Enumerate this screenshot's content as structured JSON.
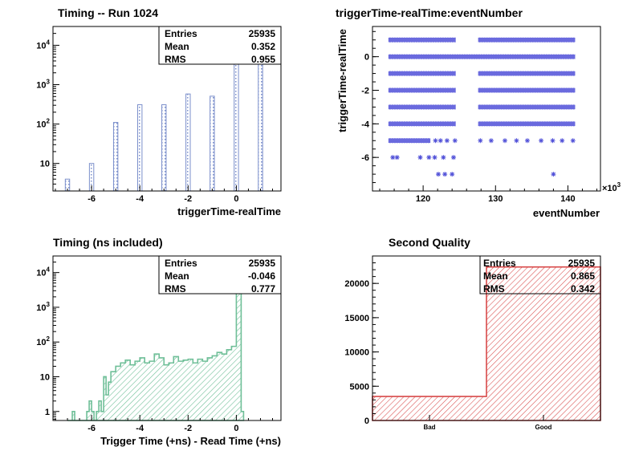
{
  "chart_data": [
    {
      "type": "bar",
      "title": "Timing -- Run 1024",
      "xlabel": "triggerTime-realTime",
      "ylabel": "",
      "xlim": [
        -7.6,
        1.85
      ],
      "ylim": [
        2,
        30000
      ],
      "y_scale": "log",
      "x_ticks": [
        "-6",
        "-4",
        "-2",
        "0"
      ],
      "y_ticks": [
        "10",
        "10^2",
        "10^3",
        "10^4"
      ],
      "grid": false,
      "color": "#7b8fcb",
      "fill_pattern": "dotted",
      "x": [
        -7,
        -6,
        -5,
        -4,
        -3,
        -2,
        -1,
        0,
        1
      ],
      "values": [
        4,
        10,
        110,
        310,
        310,
        580,
        510,
        11000,
        15000
      ],
      "stats": {
        "entries_label": "Entries",
        "entries": "25935",
        "mean_label": "Mean",
        "mean": "0.352",
        "rms_label": "RMS",
        "rms": "0.955"
      }
    },
    {
      "type": "scatter",
      "title": "triggerTime-realTime:eventNumber",
      "xlabel": "eventNumber",
      "ylabel": "triggerTime-realTime",
      "x_multiplier_label": "×10",
      "x_multiplier_exp": "3",
      "xlim": [
        113,
        144.5
      ],
      "ylim": [
        -8,
        1.8
      ],
      "x_ticks": [
        "120",
        "130",
        "140"
      ],
      "y_ticks": [
        "-6",
        "-4",
        "-2",
        "0"
      ],
      "grid": false,
      "color": "#5050d8",
      "marker": "star",
      "bands": [
        {
          "y": 1,
          "ranges": [
            [
              115.2,
              124.5
            ],
            [
              127.6,
              141.0
            ]
          ]
        },
        {
          "y": 0,
          "ranges": [
            [
              115.2,
              141.0
            ]
          ]
        },
        {
          "y": -1,
          "ranges": [
            [
              115.2,
              124.5
            ],
            [
              127.6,
              141.0
            ]
          ]
        },
        {
          "y": -2,
          "ranges": [
            [
              115.2,
              124.5
            ],
            [
              127.6,
              141.0
            ]
          ]
        },
        {
          "y": -3,
          "ranges": [
            [
              115.2,
              124.5
            ],
            [
              127.6,
              141.0
            ]
          ]
        },
        {
          "y": -4,
          "ranges": [
            [
              115.2,
              124.5
            ],
            [
              127.6,
              141.0
            ]
          ]
        },
        {
          "y": -5,
          "ranges": [
            [
              115.2,
              121.0
            ]
          ]
        }
      ],
      "points": [
        [
          121.7,
          -5
        ],
        [
          122.4,
          -5
        ],
        [
          123.3,
          -5
        ],
        [
          124.4,
          -5
        ],
        [
          127.9,
          -5
        ],
        [
          129.4,
          -5
        ],
        [
          131.3,
          -5
        ],
        [
          132.9,
          -5
        ],
        [
          134.4,
          -5
        ],
        [
          136.3,
          -5
        ],
        [
          137.9,
          -5
        ],
        [
          139.2,
          -5
        ],
        [
          140.7,
          -5
        ],
        [
          115.8,
          -6
        ],
        [
          116.4,
          -6
        ],
        [
          119.6,
          -6
        ],
        [
          120.8,
          -6
        ],
        [
          121.6,
          -6
        ],
        [
          122.8,
          -6
        ],
        [
          124.2,
          -6
        ],
        [
          122.1,
          -7
        ],
        [
          123.0,
          -7
        ],
        [
          124.0,
          -7
        ],
        [
          138.0,
          -7
        ]
      ]
    },
    {
      "type": "area",
      "title": "Timing (ns included)",
      "xlabel": "Trigger Time (+ns) - Read Time (+ns)",
      "ylabel": "",
      "xlim": [
        -7.6,
        1.85
      ],
      "ylim": [
        0.55,
        30000
      ],
      "y_scale": "log",
      "x_ticks": [
        "-6",
        "-4",
        "-2",
        "0"
      ],
      "y_ticks": [
        "1",
        "10",
        "10^2",
        "10^3",
        "10^4"
      ],
      "grid": false,
      "color": "#6fbf98",
      "fill_pattern": "hatched",
      "bin_edges": [
        -7,
        -6.8,
        -6.7,
        -6.6,
        -6.2,
        -6.1,
        -6.0,
        -5.9,
        -5.8,
        -5.7,
        -5.6,
        -5.5,
        -5.4,
        -5.3,
        -5.2,
        -5.0,
        -4.8,
        -4.6,
        -4.4,
        -4.2,
        -4.0,
        -3.8,
        -3.6,
        -3.4,
        -3.2,
        -3.0,
        -2.8,
        -2.6,
        -2.4,
        -2.2,
        -2.0,
        -1.8,
        -1.6,
        -1.4,
        -1.2,
        -1.0,
        -0.8,
        -0.6,
        -0.4,
        -0.2,
        0.0,
        0.1,
        0.2,
        0.3
      ],
      "values": [
        0,
        1,
        0,
        0,
        1,
        2,
        1,
        0,
        1,
        2,
        1,
        10,
        3,
        7,
        14,
        20,
        25,
        30,
        22,
        28,
        35,
        25,
        28,
        45,
        35,
        22,
        25,
        38,
        28,
        30,
        32,
        25,
        32,
        28,
        35,
        40,
        50,
        45,
        60,
        75,
        3000,
        15000,
        1
      ],
      "stats": {
        "entries_label": "Entries",
        "entries": "25935",
        "mean_label": "Mean",
        "mean": "-0.046",
        "rms_label": "RMS",
        "rms": "0.777"
      }
    },
    {
      "type": "bar",
      "title": "Second Quality",
      "xlabel": "",
      "ylabel": "",
      "categories": [
        "Bad",
        "Good"
      ],
      "values": [
        3500,
        22400
      ],
      "ylim": [
        0,
        24000
      ],
      "y_ticks": [
        "0",
        "5000",
        "10000",
        "15000",
        "20000"
      ],
      "grid": false,
      "color": "#d84a4a",
      "fill_pattern": "hatched",
      "stats": {
        "entries_label": "Entries",
        "entries": "25935",
        "mean_label": "Mean",
        "mean": "0.865",
        "rms_label": "RMS",
        "rms": "0.342"
      }
    }
  ]
}
